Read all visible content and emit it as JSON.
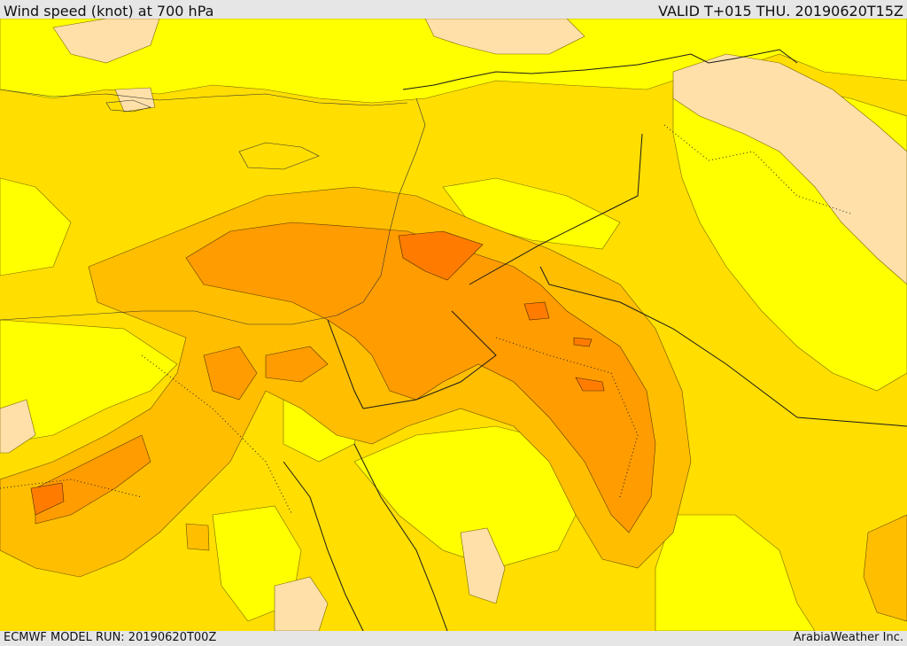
{
  "header": {
    "title": "Wind speed (knot) at 700 hPa",
    "valid": "VALID T+015 THU. 20190620T15Z"
  },
  "footer": {
    "model_run": "ECMWF MODEL RUN: 20190620T00Z",
    "credit": "ArabiaWeather Inc."
  },
  "palette": {
    "calm": "#ffe0a8",
    "light": "#ffff00",
    "moderate": "#ffde00",
    "fresh": "#ffbe00",
    "strong": "#ff9c00",
    "very_strong": "#ff7c00",
    "border": "#1a1a1a"
  }
}
